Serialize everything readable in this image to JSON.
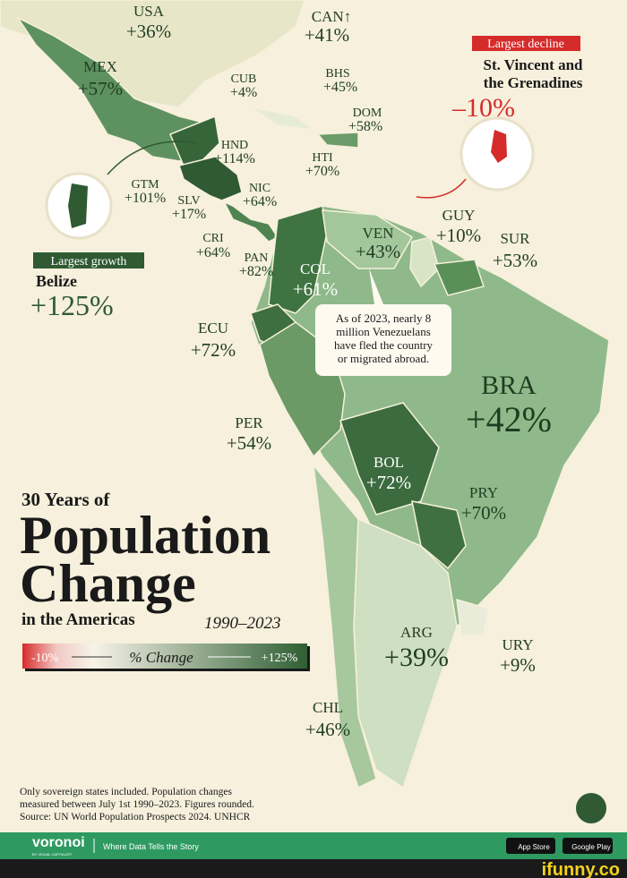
{
  "countries": [
    {
      "code": "USA",
      "change": "+36%"
    },
    {
      "code": "CAN↑",
      "change": "+41%"
    },
    {
      "code": "MEX",
      "change": "+57%"
    },
    {
      "code": "CUB",
      "change": "+4%"
    },
    {
      "code": "BHS",
      "change": "+45%"
    },
    {
      "code": "DOM",
      "change": "+58%"
    },
    {
      "code": "HTI",
      "change": "+70%"
    },
    {
      "code": "HND",
      "change": "+114%"
    },
    {
      "code": "GTM",
      "change": "+101%"
    },
    {
      "code": "SLV",
      "change": "+17%"
    },
    {
      "code": "NIC",
      "change": "+64%"
    },
    {
      "code": "CRI",
      "change": "+64%"
    },
    {
      "code": "PAN",
      "change": "+82%"
    },
    {
      "code": "COL",
      "change": "+61%"
    },
    {
      "code": "VEN",
      "change": "+43%"
    },
    {
      "code": "GUY",
      "change": "+10%"
    },
    {
      "code": "SUR",
      "change": "+53%"
    },
    {
      "code": "ECU",
      "change": "+72%"
    },
    {
      "code": "PER",
      "change": "+54%"
    },
    {
      "code": "BRA",
      "change": "+42%"
    },
    {
      "code": "BOL",
      "change": "+72%"
    },
    {
      "code": "PRY",
      "change": "+70%"
    },
    {
      "code": "ARG",
      "change": "+39%"
    },
    {
      "code": "URY",
      "change": "+9%"
    },
    {
      "code": "CHL",
      "change": "+46%"
    }
  ],
  "decline": {
    "tag": "Largest decline",
    "name": [
      "St. Vincent and",
      "the Grenadines"
    ],
    "change": "–10%"
  },
  "growth": {
    "tag": "Largest growth",
    "name": "Belize",
    "change": "+125%"
  },
  "callout": [
    "As of 2023, nearly 8",
    "million Venezuelans",
    "have fled the country",
    "or migrated abroad."
  ],
  "title": {
    "line1": "30 Years of",
    "line2": "Population",
    "line3": "Change",
    "line4": "in the Americas",
    "years": "1990–2023"
  },
  "legend": {
    "min": "-10%",
    "label": "% Change",
    "max": "+125%"
  },
  "note": [
    "Only sovereign states included. Population changes",
    "measured between July 1st 1990–2023. Figures rounded.",
    "Source: UN World Population Prospects 2024. UNHCR"
  ],
  "footer": {
    "brand": "voronoi",
    "byline": "BY VISUAL CAPITALIST",
    "tagline": "Where Data Tells the Story",
    "app_store": "App Store",
    "google_play": "Google Play",
    "watermark": "ifunny.co"
  }
}
